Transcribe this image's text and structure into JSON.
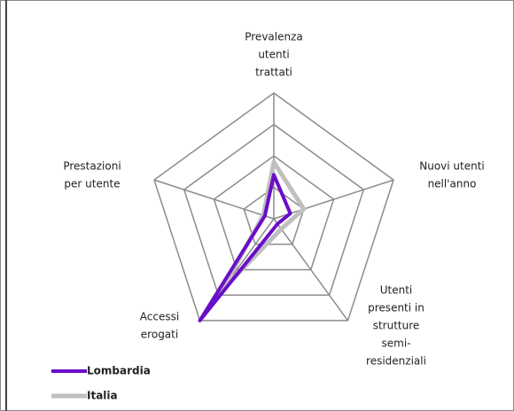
{
  "chart_data": {
    "type": "radar",
    "categories": [
      [
        "Prevalenza",
        "utenti",
        "trattati"
      ],
      [
        "Nuovi utenti",
        "nell'anno"
      ],
      [
        "Utenti",
        "presenti in",
        "strutture",
        "semi-",
        "residenziali"
      ],
      [
        "Accessi",
        "erogati"
      ],
      [
        "Prestazioni",
        "per utente"
      ]
    ],
    "series": [
      {
        "name": "Lombardia",
        "color": "#6a0dc9",
        "values": [
          1.4,
          0.55,
          0.2,
          4.0,
          0.3
        ]
      },
      {
        "name": "Italia",
        "color": "#bfbfbf",
        "values": [
          1.8,
          1.0,
          0.4,
          2.8,
          0.35
        ]
      }
    ],
    "rlim": [
      0,
      4
    ],
    "rticks": [
      1,
      2,
      3,
      4
    ],
    "grid": true,
    "legend": "bottom-left"
  }
}
